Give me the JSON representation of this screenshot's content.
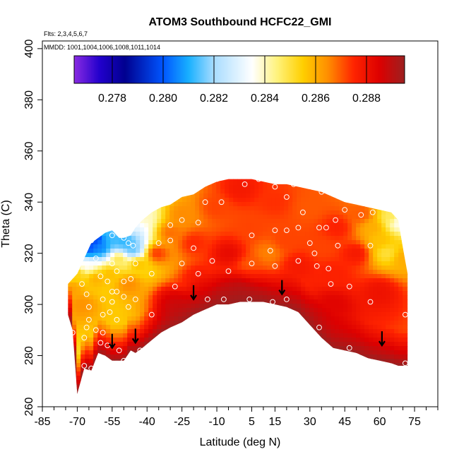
{
  "chart_data": {
    "type": "heatmap",
    "title": "ATOM3 Southbound HCFC22_GMI",
    "subtitle_flights": "Flts: 2,3,4,5,6,7",
    "subtitle_dates": "MMDD: 1001,1004,1006,1008,1011,1014",
    "xlabel": "Latitude (deg N)",
    "ylabel": "Theta (C)",
    "xlim": [
      -85,
      85
    ],
    "ylim": [
      260,
      403
    ],
    "x_ticks": [
      -85,
      -70,
      -55,
      -40,
      -25,
      -10,
      5,
      15,
      30,
      45,
      60,
      75
    ],
    "x_tick_labels": [
      "-85",
      "-70",
      "-55",
      "-40",
      "-25",
      "-10",
      "5",
      "15",
      "30",
      "45",
      "60",
      "75"
    ],
    "x_minor_ticks": [
      -80,
      -75,
      -65,
      -60,
      -50,
      -45,
      -35,
      -30,
      -20,
      -15,
      -5,
      0,
      10,
      20,
      25,
      35,
      40,
      50,
      55,
      65,
      70,
      80,
      85
    ],
    "y_ticks": [
      260,
      280,
      300,
      320,
      340,
      360,
      380,
      400
    ],
    "y_tick_labels": [
      "260",
      "280",
      "300",
      "320",
      "340",
      "360",
      "380",
      "400"
    ],
    "colorbar": {
      "min": 0.2765,
      "max": 0.2895,
      "ticks": [
        0.278,
        0.28,
        0.282,
        0.284,
        0.286,
        0.288
      ],
      "tick_labels": [
        "0.278",
        "0.280",
        "0.282",
        "0.284",
        "0.286",
        "0.288"
      ],
      "colormap": [
        {
          "v": 0.2765,
          "c": "#8a2be2"
        },
        {
          "v": 0.2775,
          "c": "#2200cc"
        },
        {
          "v": 0.2785,
          "c": "#00008f"
        },
        {
          "v": 0.28,
          "c": "#0055ff"
        },
        {
          "v": 0.281,
          "c": "#18b0ff"
        },
        {
          "v": 0.282,
          "c": "#a8dcff"
        },
        {
          "v": 0.2835,
          "c": "#ffffff"
        },
        {
          "v": 0.2845,
          "c": "#fff27a"
        },
        {
          "v": 0.2855,
          "c": "#ffcf00"
        },
        {
          "v": 0.2865,
          "c": "#ff8c00"
        },
        {
          "v": 0.2875,
          "c": "#ff2400"
        },
        {
          "v": 0.2885,
          "c": "#dd0000"
        },
        {
          "v": 0.2895,
          "c": "#9c2020"
        }
      ]
    },
    "field_profile": {
      "lat": [
        -74,
        -72,
        -70,
        -67,
        -64,
        -61,
        -58,
        -55,
        -52,
        -50,
        -47,
        -45,
        -42,
        -38,
        -34,
        -30,
        -25,
        -20,
        -15,
        -10,
        -5,
        0,
        5,
        10,
        15,
        20,
        25,
        30,
        35,
        40,
        45,
        50,
        55,
        60,
        65,
        68,
        70,
        72
      ],
      "bottom": [
        296,
        290,
        265,
        275,
        274,
        281,
        280,
        278,
        278,
        278,
        282,
        281,
        283,
        286,
        289,
        291,
        293,
        296,
        298,
        300,
        300,
        301,
        301,
        301,
        300,
        299,
        297,
        292,
        287,
        283,
        282,
        281,
        279,
        278,
        277,
        276,
        276,
        276
      ],
      "top": [
        308,
        310,
        312,
        318,
        324,
        326,
        328,
        329,
        326,
        326,
        327,
        330,
        333,
        336,
        338,
        339,
        342,
        343,
        346,
        348,
        349,
        349,
        349,
        348,
        347,
        347,
        346,
        345,
        344,
        342,
        340,
        339,
        338,
        337,
        336,
        333,
        322,
        312
      ]
    },
    "value_anchors": [
      {
        "lat": -68,
        "theta": 325,
        "v": 0.2778
      },
      {
        "lat": -65,
        "theta": 322,
        "v": 0.28
      },
      {
        "lat": -62,
        "theta": 326,
        "v": 0.2796
      },
      {
        "lat": -60,
        "theta": 322,
        "v": 0.2805
      },
      {
        "lat": -57,
        "theta": 328,
        "v": 0.2812
      },
      {
        "lat": -54,
        "theta": 326,
        "v": 0.2812
      },
      {
        "lat": -50,
        "theta": 325,
        "v": 0.281
      },
      {
        "lat": -48,
        "theta": 323,
        "v": 0.2812
      },
      {
        "lat": -46,
        "theta": 321,
        "v": 0.2814
      },
      {
        "lat": -52,
        "theta": 330,
        "v": 0.2822
      },
      {
        "lat": -46,
        "theta": 331,
        "v": 0.2832
      },
      {
        "lat": -42,
        "theta": 334,
        "v": 0.284
      },
      {
        "lat": -66,
        "theta": 315,
        "v": 0.2835
      },
      {
        "lat": -70,
        "theta": 312,
        "v": 0.2855
      },
      {
        "lat": -72,
        "theta": 306,
        "v": 0.2862
      },
      {
        "lat": -68,
        "theta": 300,
        "v": 0.2864
      },
      {
        "lat": -62,
        "theta": 310,
        "v": 0.286
      },
      {
        "lat": -56,
        "theta": 312,
        "v": 0.2858
      },
      {
        "lat": -52,
        "theta": 318,
        "v": 0.285
      },
      {
        "lat": -48,
        "theta": 308,
        "v": 0.2865
      },
      {
        "lat": -44,
        "theta": 316,
        "v": 0.2858
      },
      {
        "lat": -36,
        "theta": 320,
        "v": 0.2874
      },
      {
        "lat": -30,
        "theta": 328,
        "v": 0.2868
      },
      {
        "lat": -25,
        "theta": 335,
        "v": 0.2865
      },
      {
        "lat": -20,
        "theta": 324,
        "v": 0.2875
      },
      {
        "lat": -18,
        "theta": 310,
        "v": 0.2878
      },
      {
        "lat": -10,
        "theta": 338,
        "v": 0.2872
      },
      {
        "lat": -5,
        "theta": 320,
        "v": 0.2882
      },
      {
        "lat": 0,
        "theta": 345,
        "v": 0.2878
      },
      {
        "lat": 5,
        "theta": 330,
        "v": 0.2872
      },
      {
        "lat": 5,
        "theta": 315,
        "v": 0.287
      },
      {
        "lat": 12,
        "theta": 320,
        "v": 0.2866
      },
      {
        "lat": 15,
        "theta": 340,
        "v": 0.2874
      },
      {
        "lat": 20,
        "theta": 325,
        "v": 0.2872
      },
      {
        "lat": 25,
        "theta": 315,
        "v": 0.2878
      },
      {
        "lat": 30,
        "theta": 338,
        "v": 0.287
      },
      {
        "lat": 35,
        "theta": 322,
        "v": 0.2872
      },
      {
        "lat": 40,
        "theta": 312,
        "v": 0.2876
      },
      {
        "lat": 42,
        "theta": 330,
        "v": 0.2876
      },
      {
        "lat": 50,
        "theta": 320,
        "v": 0.2878
      },
      {
        "lat": 52,
        "theta": 335,
        "v": 0.287
      },
      {
        "lat": 57,
        "theta": 330,
        "v": 0.286
      },
      {
        "lat": 60,
        "theta": 325,
        "v": 0.2857
      },
      {
        "lat": 63,
        "theta": 320,
        "v": 0.285
      },
      {
        "lat": 65,
        "theta": 334,
        "v": 0.2848
      },
      {
        "lat": 68,
        "theta": 332,
        "v": 0.2835
      },
      {
        "lat": 70,
        "theta": 318,
        "v": 0.286
      },
      {
        "lat": 60,
        "theta": 305,
        "v": 0.288
      },
      {
        "lat": -2,
        "theta": 306,
        "v": 0.2884
      },
      {
        "lat": -30,
        "theta": 302,
        "v": 0.2884
      },
      {
        "lat": 40,
        "theta": 300,
        "v": 0.2884
      }
    ],
    "lower_band_value": 0.2895,
    "lower_band_depth": 14,
    "sample_points": [
      {
        "lat": -10,
        "theta": 349
      },
      {
        "lat": 2,
        "theta": 347
      },
      {
        "lat": 8,
        "theta": 349
      },
      {
        "lat": 15,
        "theta": 346
      },
      {
        "lat": 23,
        "theta": 347
      },
      {
        "lat": -20,
        "theta": 346
      },
      {
        "lat": -15,
        "theta": 340
      },
      {
        "lat": -8,
        "theta": 340
      },
      {
        "lat": 20,
        "theta": 342
      },
      {
        "lat": 35,
        "theta": 344
      },
      {
        "lat": 27,
        "theta": 336
      },
      {
        "lat": 45,
        "theta": 337
      },
      {
        "lat": 52,
        "theta": 335
      },
      {
        "lat": 57,
        "theta": 336
      },
      {
        "lat": 41,
        "theta": 333
      },
      {
        "lat": -25,
        "theta": 333
      },
      {
        "lat": -30,
        "theta": 331
      },
      {
        "lat": -18,
        "theta": 332
      },
      {
        "lat": 34,
        "theta": 330
      },
      {
        "lat": 37,
        "theta": 330
      },
      {
        "lat": 15,
        "theta": 329
      },
      {
        "lat": 20,
        "theta": 329
      },
      {
        "lat": 25,
        "theta": 330
      },
      {
        "lat": 5,
        "theta": 327
      },
      {
        "lat": -60,
        "theta": 328
      },
      {
        "lat": -55,
        "theta": 327
      },
      {
        "lat": -50,
        "theta": 326
      },
      {
        "lat": -64,
        "theta": 325
      },
      {
        "lat": -46,
        "theta": 323
      },
      {
        "lat": -48,
        "theta": 324
      },
      {
        "lat": -35,
        "theta": 324
      },
      {
        "lat": -30,
        "theta": 325
      },
      {
        "lat": -20,
        "theta": 322
      },
      {
        "lat": 30,
        "theta": 324
      },
      {
        "lat": 42,
        "theta": 323
      },
      {
        "lat": 56,
        "theta": 323
      },
      {
        "lat": 32,
        "theta": 320
      },
      {
        "lat": 13,
        "theta": 321
      },
      {
        "lat": -62,
        "theta": 318
      },
      {
        "lat": -55,
        "theta": 316
      },
      {
        "lat": -45,
        "theta": 316
      },
      {
        "lat": -25,
        "theta": 316
      },
      {
        "lat": -12,
        "theta": 317
      },
      {
        "lat": 5,
        "theta": 316
      },
      {
        "lat": 15,
        "theta": 315
      },
      {
        "lat": 25,
        "theta": 317
      },
      {
        "lat": 33,
        "theta": 315
      },
      {
        "lat": 38,
        "theta": 314
      },
      {
        "lat": -53,
        "theta": 313
      },
      {
        "lat": -38,
        "theta": 312
      },
      {
        "lat": -18,
        "theta": 312
      },
      {
        "lat": -5,
        "theta": 313
      },
      {
        "lat": 39,
        "theta": 308
      },
      {
        "lat": -80,
        "theta": 310
      },
      {
        "lat": -68,
        "theta": 308
      },
      {
        "lat": -60,
        "theta": 311
      },
      {
        "lat": -57,
        "theta": 309
      },
      {
        "lat": -50,
        "theta": 309
      },
      {
        "lat": -47,
        "theta": 310
      },
      {
        "lat": -55,
        "theta": 305
      },
      {
        "lat": -53,
        "theta": 305
      },
      {
        "lat": -28,
        "theta": 307
      },
      {
        "lat": 47,
        "theta": 307
      },
      {
        "lat": -66,
        "theta": 304
      },
      {
        "lat": -59,
        "theta": 302
      },
      {
        "lat": -50,
        "theta": 303
      },
      {
        "lat": -45,
        "theta": 302
      },
      {
        "lat": -65,
        "theta": 299
      },
      {
        "lat": -55,
        "theta": 301
      },
      {
        "lat": -48,
        "theta": 299
      },
      {
        "lat": -38,
        "theta": 296
      },
      {
        "lat": -14,
        "theta": 302
      },
      {
        "lat": -7,
        "theta": 302
      },
      {
        "lat": 4,
        "theta": 302
      },
      {
        "lat": 14,
        "theta": 301
      },
      {
        "lat": 20,
        "theta": 302
      },
      {
        "lat": 56,
        "theta": 301
      },
      {
        "lat": 71,
        "theta": 296
      },
      {
        "lat": -65,
        "theta": 294
      },
      {
        "lat": -59,
        "theta": 296
      },
      {
        "lat": -56,
        "theta": 297
      },
      {
        "lat": -53,
        "theta": 294
      },
      {
        "lat": -66,
        "theta": 291
      },
      {
        "lat": -62,
        "theta": 290
      },
      {
        "lat": -59,
        "theta": 289
      },
      {
        "lat": -72,
        "theta": 289
      },
      {
        "lat": -67,
        "theta": 287
      },
      {
        "lat": -60,
        "theta": 285
      },
      {
        "lat": -57,
        "theta": 284
      },
      {
        "lat": -52,
        "theta": 282
      },
      {
        "lat": -43,
        "theta": 282
      },
      {
        "lat": -50,
        "theta": 278
      },
      {
        "lat": 34,
        "theta": 291
      },
      {
        "lat": 47,
        "theta": 283
      },
      {
        "lat": -67,
        "theta": 276
      },
      {
        "lat": -64,
        "theta": 275
      },
      {
        "lat": 71,
        "theta": 277
      },
      {
        "lat": -68,
        "theta": 266
      },
      {
        "lat": -71,
        "theta": 262
      }
    ],
    "arrows": [
      {
        "lat": -55,
        "theta": 283
      },
      {
        "lat": -45,
        "theta": 285
      },
      {
        "lat": -20,
        "theta": 302
      },
      {
        "lat": 18,
        "theta": 304
      },
      {
        "lat": 61,
        "theta": 284
      }
    ]
  }
}
